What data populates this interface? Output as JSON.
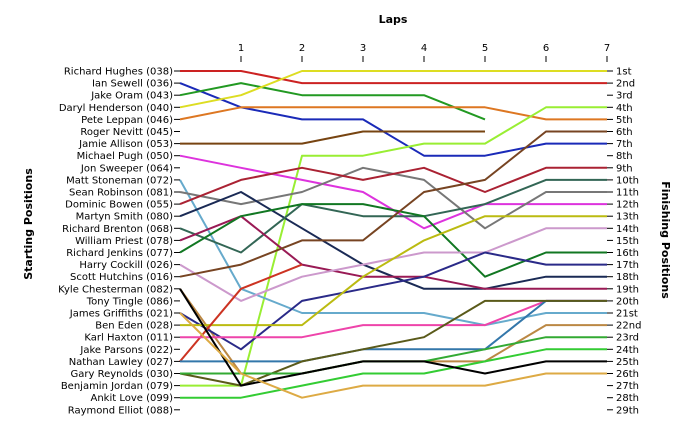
{
  "chart_data": {
    "type": "line",
    "title": "Laps",
    "ylabel_left": "Starting Positions",
    "ylabel_right": "Finishing Positions",
    "x": [
      0,
      1,
      2,
      3,
      4,
      5,
      6,
      7
    ],
    "x_tick_labels": [
      "1",
      "2",
      "3",
      "4",
      "5",
      "6",
      "7"
    ],
    "starting_grid": [
      "Richard Hughes (038)",
      "Ian Sewell (036)",
      "Jake Oram (043)",
      "Daryl Henderson (040)",
      "Pete Leppan (046)",
      "Roger Nevitt (045)",
      "Jamie Allison (053)",
      "Michael Pugh (050)",
      "Jon Sweeper (064)",
      "Matt Stoneman (072)",
      "Sean Robinson (081)",
      "Dominic Bowen (055)",
      "Martyn Smith (080)",
      "Richard Brenton (068)",
      "William Priest (078)",
      "Richard Jenkins (077)",
      "Harry Cockill (026)",
      "Scott Hutchins (016)",
      "Kyle Chesterman (082)",
      "Tony Tingle (086)",
      "James Griffiths (021)",
      "Ben Eden (028)",
      "Karl Haxton (011)",
      "Jake Parsons (022)",
      "Nathan Lawley (027)",
      "Gary Reynolds (030)",
      "Benjamin Jordan (079)",
      "Ankit Love (099)",
      "Raymond Elliot (088)"
    ],
    "finishing_labels": [
      "1st",
      "2nd",
      "3rd",
      "4th",
      "5th",
      "6th",
      "7th",
      "8th",
      "9th",
      "10th",
      "11th",
      "12th",
      "13th",
      "14th",
      "15th",
      "16th",
      "17th",
      "18th",
      "19th",
      "20th",
      "21st",
      "22nd",
      "23rd",
      "24th",
      "25th",
      "26th",
      "27th",
      "28th",
      "29th"
    ],
    "ylim": [
      1,
      29
    ],
    "grid": false,
    "series": [
      {
        "color": "#cc2222",
        "positions": [
          1,
          1,
          2,
          2,
          2,
          2,
          2,
          2
        ]
      },
      {
        "color": "#1a2ab8",
        "positions": [
          2,
          4,
          5,
          5,
          8,
          8,
          7,
          7
        ]
      },
      {
        "color": "#229922",
        "positions": [
          3,
          2,
          3,
          3,
          3,
          5
        ]
      },
      {
        "color": "#dddd22",
        "positions": [
          4,
          3,
          1,
          1,
          1,
          1,
          1,
          1
        ]
      },
      {
        "color": "#dd7722",
        "positions": [
          5,
          4,
          4,
          4,
          4,
          4,
          5,
          5
        ]
      },
      {
        "color": "#774411",
        "positions": [
          7,
          7,
          7,
          6,
          6,
          6
        ]
      },
      {
        "color": "#99ee33",
        "positions": [
          27,
          27,
          8,
          8,
          7,
          7,
          4,
          4
        ]
      },
      {
        "color": "#dd33dd",
        "positions": [
          8,
          9,
          10,
          11,
          14,
          12,
          12,
          12
        ]
      },
      {
        "color": "#66aacc",
        "positions": [
          10,
          19,
          21,
          21,
          21,
          22,
          21,
          21
        ]
      },
      {
        "color": "#777777",
        "positions": [
          11,
          12,
          11,
          9,
          10,
          14,
          11,
          11
        ]
      },
      {
        "color": "#aa2233",
        "positions": [
          12,
          10,
          9,
          10,
          9,
          11,
          9,
          9
        ]
      },
      {
        "color": "#1a2a55",
        "positions": [
          13,
          11,
          14,
          17,
          19,
          19,
          18,
          18
        ]
      },
      {
        "color": "#336655",
        "positions": [
          14,
          16,
          12,
          13,
          13,
          12,
          10,
          10
        ]
      },
      {
        "color": "#991a55",
        "positions": [
          15,
          13,
          17,
          18,
          18,
          19,
          19,
          19
        ]
      },
      {
        "color": "#117722",
        "positions": [
          16,
          13,
          12,
          12,
          13,
          18,
          16,
          16
        ]
      },
      {
        "color": "#cc99cc",
        "positions": [
          17,
          20,
          18,
          17,
          16,
          16,
          14,
          14
        ]
      },
      {
        "color": "#774422",
        "positions": [
          18,
          17,
          15,
          15,
          11,
          10,
          6,
          6
        ]
      },
      {
        "color": "#bb8844",
        "positions": [
          19,
          26,
          26,
          25,
          25,
          25,
          22,
          22
        ]
      },
      {
        "color": "#2a2a88",
        "positions": [
          21,
          24,
          20,
          19,
          18,
          16,
          17,
          17
        ]
      },
      {
        "color": "#bbbb11",
        "positions": [
          22,
          22,
          22,
          18,
          15,
          13,
          13,
          13
        ]
      },
      {
        "color": "#cc3322",
        "positions": [
          25,
          19,
          17
        ]
      },
      {
        "color": "#ee44aa",
        "positions": [
          23,
          23,
          23,
          22,
          22,
          22,
          20,
          20
        ]
      },
      {
        "color": "#3377aa",
        "positions": [
          25,
          25,
          25,
          24,
          24,
          24,
          20,
          20
        ]
      },
      {
        "color": "#5a5a1a",
        "positions": [
          26,
          27,
          25,
          24,
          23,
          20,
          20,
          20
        ]
      },
      {
        "color": "#33aa33",
        "positions": [
          26,
          26,
          26,
          25,
          25,
          24,
          23,
          23
        ]
      },
      {
        "color": "#33cc33",
        "positions": [
          28,
          28,
          27,
          26,
          26,
          25,
          24,
          24
        ]
      },
      {
        "color": "#000000",
        "positions": [
          19,
          27,
          26,
          25,
          25,
          26,
          25,
          25
        ]
      },
      {
        "color": "#ddaa44",
        "positions": [
          21,
          26,
          28,
          27,
          27,
          27,
          26,
          26
        ]
      }
    ]
  }
}
